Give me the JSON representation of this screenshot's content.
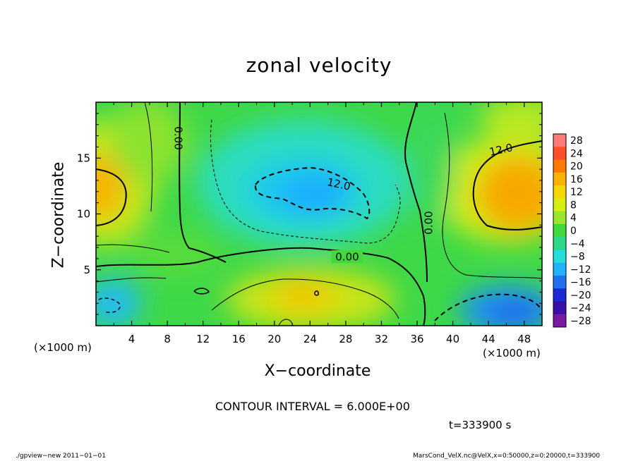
{
  "chart_data": {
    "type": "heatmap",
    "title": "zonal velocity",
    "xlabel": "X−coordinate",
    "ylabel": "Z−coordinate",
    "x_unit": "(×1000 m)",
    "y_unit": "(×1000 m)",
    "xlim": [
      0,
      50
    ],
    "ylim": [
      0,
      20
    ],
    "x_ticks": [
      4,
      8,
      12,
      16,
      20,
      24,
      28,
      32,
      36,
      40,
      44,
      48
    ],
    "y_ticks": [
      5,
      10,
      15
    ],
    "colorbar": {
      "levels": [
        "28",
        "24",
        "20",
        "16",
        "12",
        "8",
        "4",
        "0",
        "−4",
        "−8",
        "−12",
        "−16",
        "−20",
        "−24",
        "−28"
      ],
      "colors": [
        "#ff7a7a",
        "#ff4e2a",
        "#ff7a00",
        "#ffb100",
        "#f5d800",
        "#d6ee10",
        "#99e62a",
        "#40d83a",
        "#2ad88a",
        "#22e0d8",
        "#20b4ff",
        "#2070f0",
        "#1a2ad8",
        "#3a10a8",
        "#7a1aa0"
      ]
    },
    "contour_labels": [
      "0.00",
      "12.0",
      "0.00",
      "0.00",
      "12.0"
    ],
    "contour_interval": "CONTOUR INTERVAL = 6.000E+00",
    "time": "t=333900 s"
  },
  "footer": {
    "left": "./gpview−new  2011−01−01",
    "right": "MarsCond_VelX.nc@VelX,x=0:50000,z=0:20000,t=333900"
  }
}
